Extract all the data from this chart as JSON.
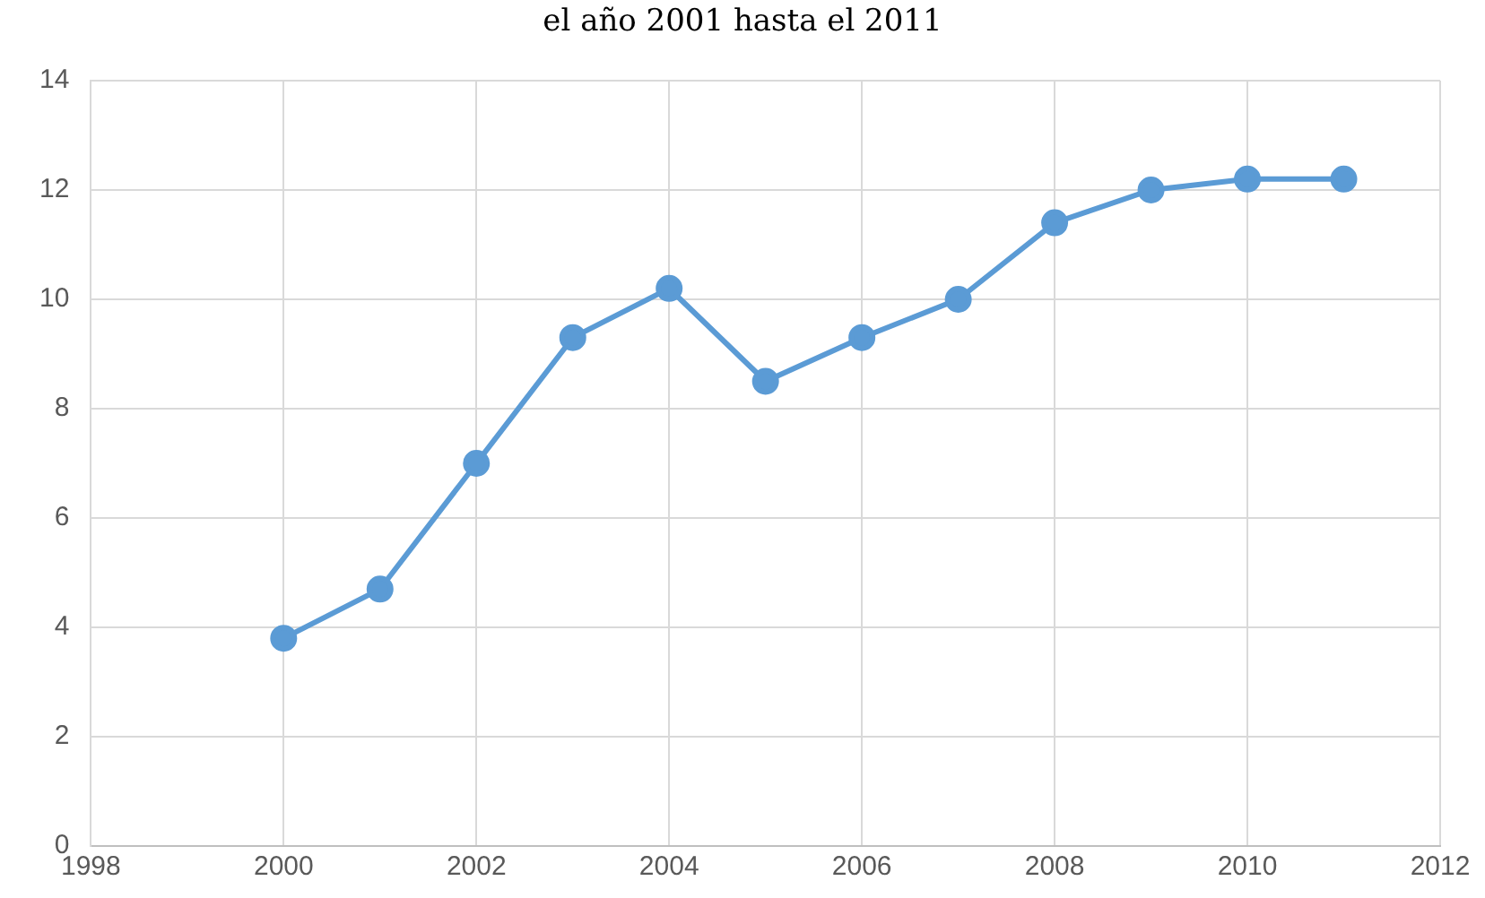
{
  "chart_data": {
    "type": "line",
    "title": "el año 2001 hasta el 2011",
    "x": [
      2000,
      2001,
      2002,
      2003,
      2004,
      2005,
      2006,
      2007,
      2008,
      2009,
      2010,
      2011
    ],
    "series": [
      {
        "color": "#5b9bd5",
        "values": [
          3.8,
          4.7,
          7.0,
          9.3,
          10.2,
          8.5,
          9.3,
          10.0,
          11.4,
          12.0,
          12.2,
          12.2
        ]
      }
    ],
    "xlim": [
      1998,
      2012
    ],
    "xticks": [
      1998,
      2000,
      2002,
      2004,
      2006,
      2008,
      2010,
      2012
    ],
    "ylim": [
      0,
      14
    ],
    "yticks": [
      0,
      2,
      4,
      6,
      8,
      10,
      12,
      14
    ],
    "grid": true,
    "legend": false,
    "marker": "circle",
    "line_style": "solid"
  }
}
